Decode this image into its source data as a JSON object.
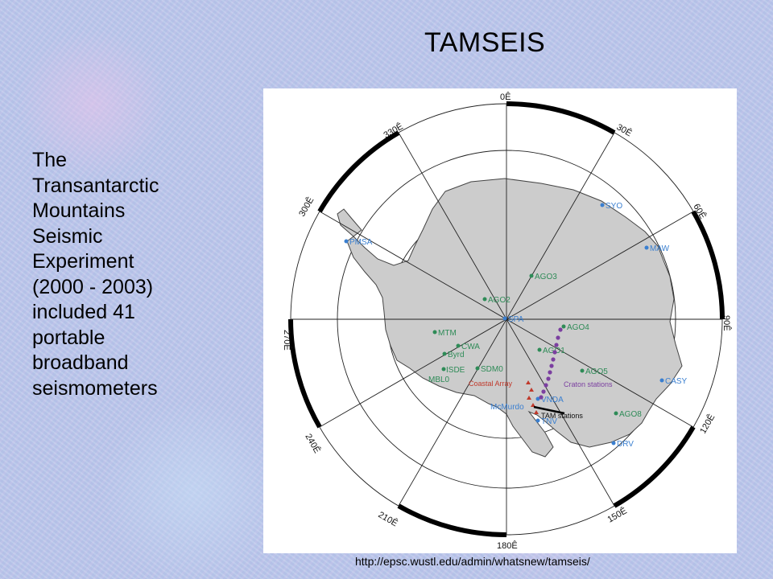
{
  "slide": {
    "title": "TAMSEIS",
    "description_lines": [
      "The",
      "Transantarctic",
      "Mountains",
      "Seismic",
      "Experiment",
      "(2000 - 2003)",
      "included 41",
      "portable",
      "broadband",
      "seismometers"
    ],
    "source_url": "http://epsc.wustl.edu/admin/whatsnew/tamseis/"
  },
  "map": {
    "longitude_labels": [
      "0Ê",
      "30Ê",
      "60Ê",
      "90Ê",
      "120Ê",
      "150Ê",
      "180Ê",
      "210Ê",
      "240Ê",
      "270Ê",
      "300Ê",
      "330Ê"
    ],
    "stations": {
      "green": [
        "AGO3",
        "AGO2",
        "AGO4",
        "AGO1",
        "AGO5",
        "AGO8",
        "MTM",
        "CWA",
        "Byrd",
        "ISDE",
        "SDM0",
        "MBL0"
      ],
      "blue": [
        "SYO",
        "MAW",
        "CASY",
        "DRV",
        "PMSA",
        "SPA",
        "VNDA",
        "TNV",
        "McMurdo"
      ]
    },
    "network_labels": {
      "coastal": "Coastal Array",
      "craton": "Craton stations",
      "tam": "TAM stations"
    },
    "colors": {
      "land": "#cccccc",
      "green_station": "#2e8b57",
      "blue_station": "#3a7fd0",
      "coastal_array": "#c0392b",
      "craton_array": "#7b3fa0",
      "tam_array": "#000000"
    }
  }
}
